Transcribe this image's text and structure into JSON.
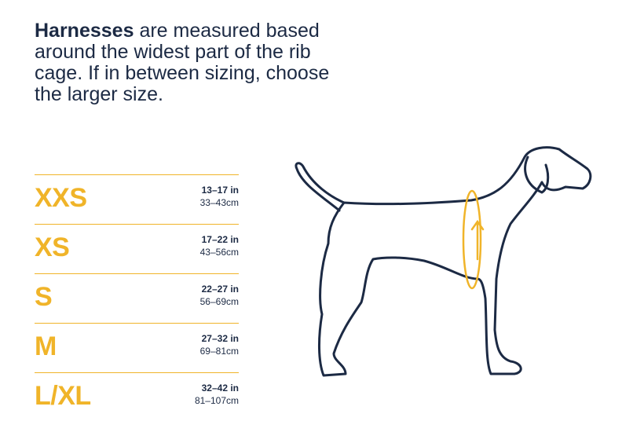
{
  "intro": {
    "bold": "Harnesses",
    "text": "are measured based around the widest part of the rib cage. If in between sizing, choose the larger size."
  },
  "sizes": [
    {
      "size": "XXS",
      "inches": "13–17 in",
      "cm": "33–43cm"
    },
    {
      "size": "XS",
      "inches": "17–22 in",
      "cm": "43–56cm"
    },
    {
      "size": "S",
      "inches": "22–27 in",
      "cm": "56–69cm"
    },
    {
      "size": "M",
      "inches": "27–32 in",
      "cm": "69–81cm"
    },
    {
      "size": "L/XL",
      "inches": "32–42 in",
      "cm": "81–107cm"
    }
  ]
}
